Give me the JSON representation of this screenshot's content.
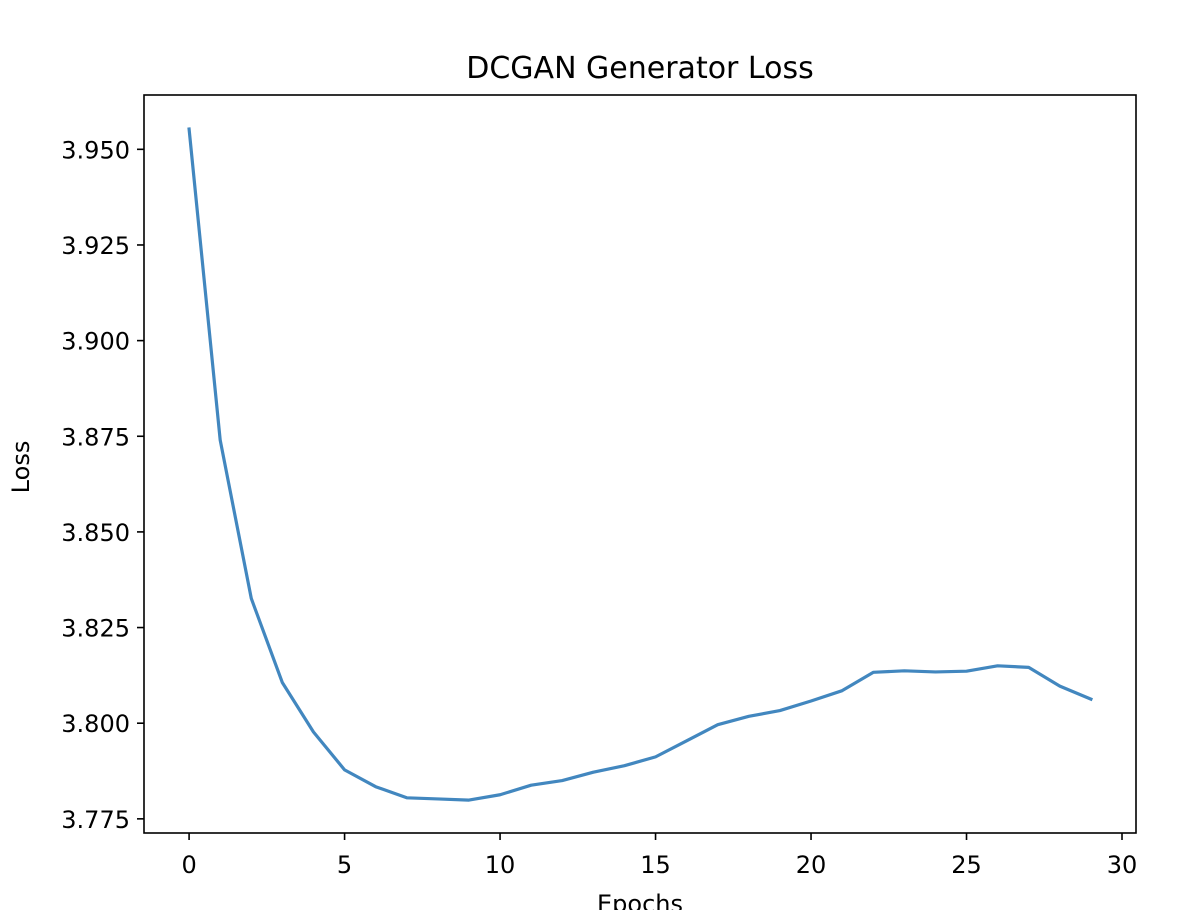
{
  "chart_data": {
    "type": "line",
    "title": "DCGAN Generator Loss",
    "xlabel": "Epochs",
    "ylabel": "Loss",
    "xlim": [
      -1.45,
      30.45
    ],
    "ylim": [
      3.7713,
      3.9642
    ],
    "x_ticks": [
      0,
      5,
      10,
      15,
      20,
      25,
      30
    ],
    "x_tick_labels": [
      "0",
      "5",
      "10",
      "15",
      "20",
      "25",
      "30"
    ],
    "y_ticks": [
      3.775,
      3.8,
      3.825,
      3.85,
      3.875,
      3.9,
      3.925,
      3.95
    ],
    "y_tick_labels": [
      "3.775",
      "3.800",
      "3.825",
      "3.850",
      "3.875",
      "3.900",
      "3.925",
      "3.950"
    ],
    "grid": false,
    "series": [
      {
        "color": "#4287bf",
        "x": [
          0,
          1,
          2,
          3,
          4,
          5,
          6,
          7,
          8,
          9,
          10,
          11,
          12,
          13,
          14,
          15,
          16,
          17,
          18,
          19,
          20,
          21,
          22,
          23,
          24,
          25,
          26,
          27,
          28,
          29
        ],
        "y": [
          3.9553,
          3.874,
          3.8326,
          3.8106,
          3.7977,
          3.7878,
          3.7834,
          3.7805,
          3.7802,
          3.7799,
          3.7813,
          3.7838,
          3.785,
          3.7872,
          3.7889,
          3.7912,
          3.7954,
          3.7996,
          3.8018,
          3.8033,
          3.8058,
          3.8085,
          3.8133,
          3.8137,
          3.8134,
          3.8136,
          3.815,
          3.8146,
          3.8097,
          3.8063
        ]
      }
    ]
  }
}
